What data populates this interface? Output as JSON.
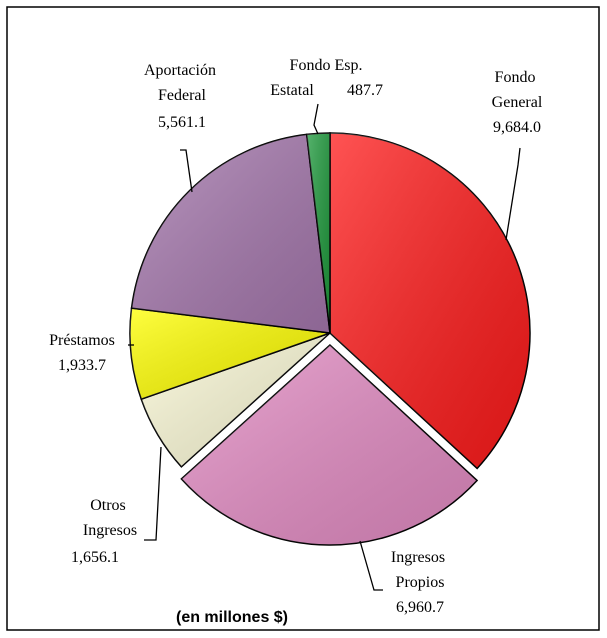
{
  "chart_data": {
    "type": "pie",
    "title": "(en millones $)",
    "categories": [
      "Fondo General",
      "Ingresos Propios",
      "Otros Ingresos",
      "Préstamos",
      "Aportación Federal",
      "Fondo Esp. Estatal"
    ],
    "values": [
      9684.0,
      6960.7,
      1656.1,
      1933.7,
      5561.1,
      487.7
    ],
    "value_labels": [
      "9,684.0",
      "6,960.7",
      "1,656.1",
      "1,933.7",
      "5,561.1",
      "487.7"
    ],
    "colors": [
      "#ff1a1a",
      "#e48cc4",
      "#fdfbd8",
      "#ffff00",
      "#a678ae",
      "#1e9a3c"
    ],
    "exploded": [
      "Ingresos Propios"
    ]
  }
}
